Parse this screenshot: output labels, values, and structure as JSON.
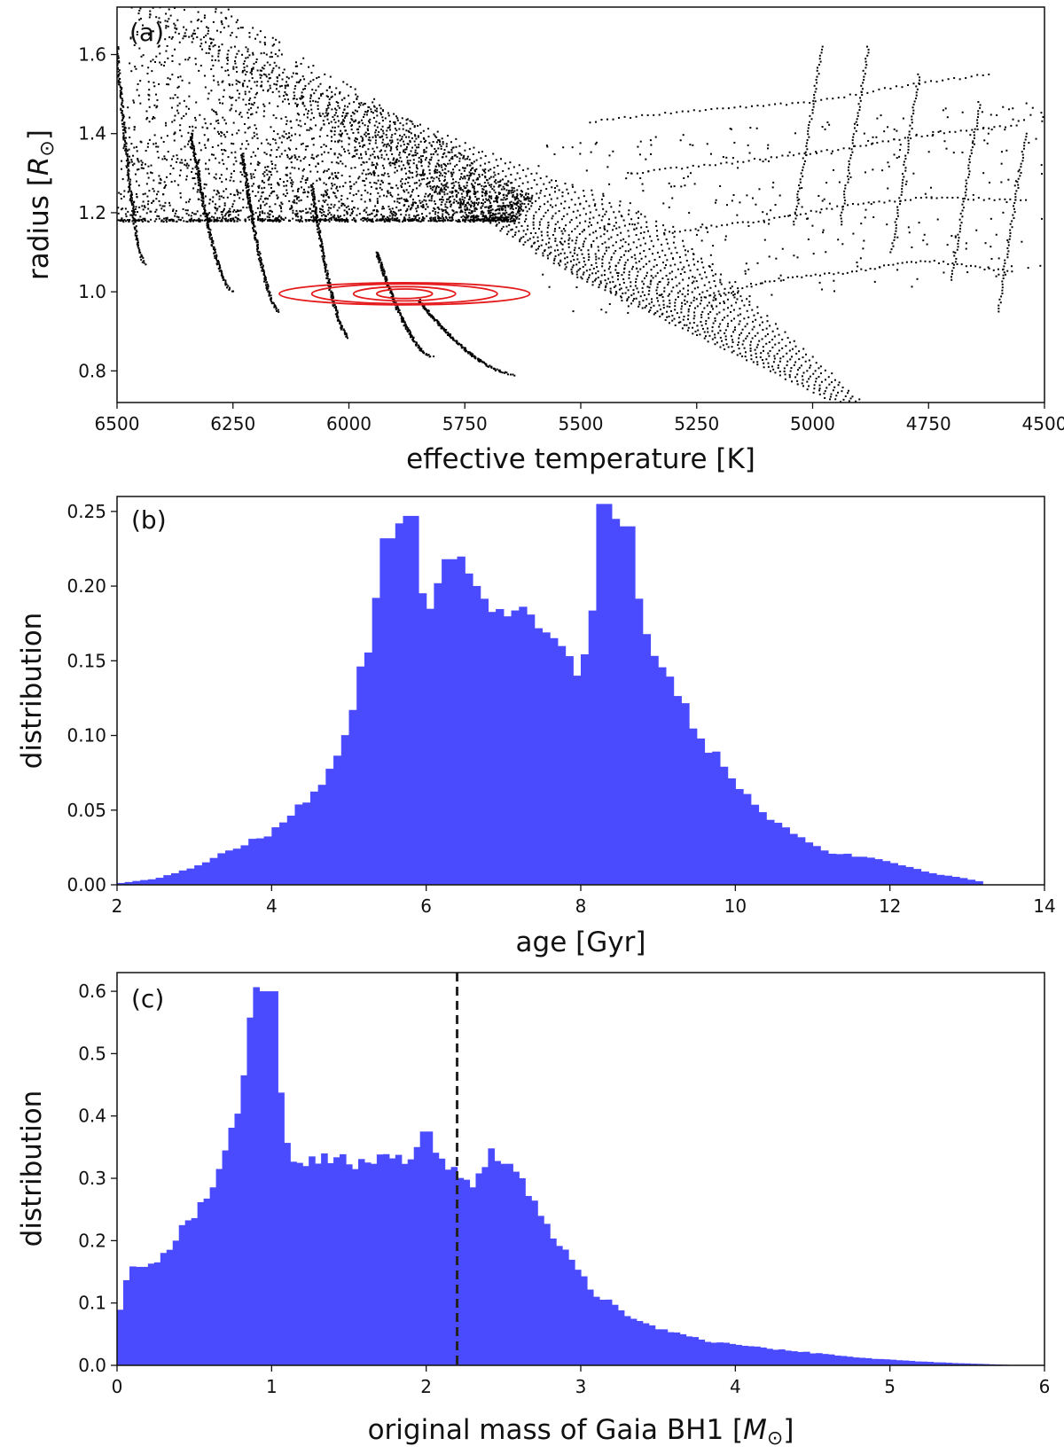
{
  "chart_data": [
    {
      "type": "scatter",
      "panel_label": "(a)",
      "xlabel": "effective temperature [K]",
      "ylabel": "radius [R⊙]",
      "xlim": [
        6500,
        4500
      ],
      "ylim": [
        0.72,
        1.72
      ],
      "x_inverted": true,
      "xticks": [
        6500,
        6250,
        6000,
        5750,
        5500,
        5250,
        5000,
        4750,
        4500
      ],
      "yticks": [
        0.8,
        1.0,
        1.2,
        1.4,
        1.6
      ],
      "point_color": "#000000",
      "zams_line": [
        [
          6500,
          1.18
        ],
        [
          6420,
          1.07
        ],
        [
          6250,
          1.0
        ],
        [
          6150,
          0.95
        ],
        [
          6000,
          0.885
        ],
        [
          5820,
          0.835
        ],
        [
          5640,
          0.79
        ]
      ],
      "tracks": [
        {
          "start": [
            6440,
            1.07
          ],
          "end_teff": 6500,
          "r_end": 1.62
        },
        {
          "start": [
            6250,
            1.0
          ],
          "end_teff": 6340,
          "r_end": 1.4
        },
        {
          "start": [
            6150,
            0.95
          ],
          "end_teff": 6230,
          "r_end": 1.35
        },
        {
          "start": [
            6000,
            0.885
          ],
          "end_teff": 6080,
          "r_end": 1.27
        },
        {
          "start": [
            5820,
            0.835
          ],
          "end_teff": 5940,
          "r_end": 1.1
        },
        {
          "start": [
            5640,
            0.79
          ],
          "end_teff": 5850,
          "r_end": 0.98
        }
      ],
      "red_giant_branch": {
        "curves": [
          [
            [
              5250,
              0.98
            ],
            [
              5080,
              1.03
            ],
            [
              4920,
              1.05
            ],
            [
              4760,
              1.08
            ],
            [
              4570,
              1.05
            ]
          ],
          [
            [
              5320,
              1.15
            ],
            [
              5110,
              1.18
            ],
            [
              4920,
              1.22
            ],
            [
              4740,
              1.24
            ],
            [
              4540,
              1.23
            ]
          ],
          [
            [
              5390,
              1.3
            ],
            [
              5150,
              1.33
            ],
            [
              4940,
              1.36
            ],
            [
              4740,
              1.4
            ],
            [
              4560,
              1.42
            ]
          ],
          [
            [
              5480,
              1.43
            ],
            [
              5240,
              1.46
            ],
            [
              5000,
              1.48
            ],
            [
              4810,
              1.52
            ],
            [
              4620,
              1.55
            ]
          ]
        ],
        "tips": [
          [
            4980,
            1.62
          ],
          [
            4880,
            1.62
          ],
          [
            4770,
            1.55
          ],
          [
            4640,
            1.48
          ],
          [
            4540,
            1.4
          ]
        ]
      },
      "contours": {
        "color": "#e41a1c",
        "center": [
          5880,
          0.995
        ],
        "ellipses": [
          {
            "half_width_K": 60,
            "half_height": 0.012
          },
          {
            "half_width_K": 110,
            "half_height": 0.018
          },
          {
            "half_width_K": 200,
            "half_height": 0.025
          },
          {
            "half_width_K": 270,
            "half_height": 0.028
          }
        ]
      }
    },
    {
      "type": "bar",
      "panel_label": "(b)",
      "xlabel": "age [Gyr]",
      "ylabel": "distribution",
      "xlim": [
        2,
        14
      ],
      "ylim": [
        0,
        0.26
      ],
      "xticks": [
        2,
        4,
        6,
        8,
        10,
        12,
        14
      ],
      "yticks": [
        0.0,
        0.05,
        0.1,
        0.15,
        0.2,
        0.25
      ],
      "bar_color": "#4a4aff",
      "bin_width": 0.1,
      "key_points": [
        [
          2.0,
          0.001
        ],
        [
          2.5,
          0.004
        ],
        [
          3.0,
          0.012
        ],
        [
          3.5,
          0.024
        ],
        [
          4.0,
          0.035
        ],
        [
          4.3,
          0.05
        ],
        [
          4.6,
          0.062
        ],
        [
          4.9,
          0.09
        ],
        [
          5.1,
          0.13
        ],
        [
          5.3,
          0.17
        ],
        [
          5.45,
          0.215
        ],
        [
          5.6,
          0.22
        ],
        [
          5.75,
          0.24
        ],
        [
          5.9,
          0.205
        ],
        [
          6.05,
          0.19
        ],
        [
          6.2,
          0.21
        ],
        [
          6.4,
          0.215
        ],
        [
          6.6,
          0.205
        ],
        [
          6.9,
          0.185
        ],
        [
          7.2,
          0.18
        ],
        [
          7.5,
          0.17
        ],
        [
          7.8,
          0.16
        ],
        [
          8.0,
          0.14
        ],
        [
          8.1,
          0.16
        ],
        [
          8.25,
          0.23
        ],
        [
          8.35,
          0.25
        ],
        [
          8.5,
          0.24
        ],
        [
          8.7,
          0.2
        ],
        [
          8.9,
          0.16
        ],
        [
          9.2,
          0.13
        ],
        [
          9.6,
          0.095
        ],
        [
          10.0,
          0.07
        ],
        [
          10.4,
          0.045
        ],
        [
          10.8,
          0.033
        ],
        [
          11.2,
          0.022
        ],
        [
          11.6,
          0.019
        ],
        [
          12.0,
          0.016
        ],
        [
          12.5,
          0.008
        ],
        [
          13.0,
          0.004
        ],
        [
          13.2,
          0.002
        ],
        [
          13.25,
          0.0
        ]
      ],
      "spikes": [
        [
          5.5,
          0.232
        ],
        [
          5.65,
          0.242
        ],
        [
          5.8,
          0.247
        ],
        [
          6.3,
          0.218
        ],
        [
          8.3,
          0.255
        ],
        [
          8.45,
          0.245
        ],
        [
          8.6,
          0.24
        ]
      ]
    },
    {
      "type": "bar",
      "panel_label": "(c)",
      "xlabel": "original mass of Gaia BH1 [M⊙]",
      "ylabel": "distribution",
      "xlim": [
        0,
        6
      ],
      "ylim": [
        0,
        0.63
      ],
      "xticks": [
        0,
        1,
        2,
        3,
        4,
        5,
        6
      ],
      "yticks": [
        0.0,
        0.1,
        0.2,
        0.3,
        0.4,
        0.5,
        0.6
      ],
      "bar_color": "#4a4aff",
      "bin_width": 0.04,
      "vline": {
        "x": 2.2,
        "style": "dashed",
        "color": "#222222"
      },
      "key_points": [
        [
          0.0,
          0.06
        ],
        [
          0.03,
          0.11
        ],
        [
          0.08,
          0.155
        ],
        [
          0.18,
          0.165
        ],
        [
          0.25,
          0.16
        ],
        [
          0.3,
          0.175
        ],
        [
          0.4,
          0.215
        ],
        [
          0.5,
          0.24
        ],
        [
          0.6,
          0.27
        ],
        [
          0.7,
          0.33
        ],
        [
          0.78,
          0.42
        ],
        [
          0.85,
          0.52
        ],
        [
          0.9,
          0.59
        ],
        [
          0.95,
          0.6
        ],
        [
          1.0,
          0.57
        ],
        [
          1.05,
          0.45
        ],
        [
          1.1,
          0.36
        ],
        [
          1.15,
          0.335
        ],
        [
          1.3,
          0.325
        ],
        [
          1.5,
          0.33
        ],
        [
          1.7,
          0.325
        ],
        [
          1.9,
          0.34
        ],
        [
          2.0,
          0.37
        ],
        [
          2.1,
          0.34
        ],
        [
          2.2,
          0.3
        ],
        [
          2.28,
          0.28
        ],
        [
          2.35,
          0.32
        ],
        [
          2.45,
          0.345
        ],
        [
          2.55,
          0.32
        ],
        [
          2.65,
          0.28
        ],
        [
          2.8,
          0.22
        ],
        [
          2.95,
          0.16
        ],
        [
          3.1,
          0.115
        ],
        [
          3.3,
          0.08
        ],
        [
          3.5,
          0.06
        ],
        [
          3.8,
          0.04
        ],
        [
          4.1,
          0.03
        ],
        [
          4.5,
          0.02
        ],
        [
          4.8,
          0.012
        ],
        [
          5.2,
          0.006
        ],
        [
          5.5,
          0.003
        ],
        [
          5.75,
          0.001
        ]
      ],
      "spikes": [
        [
          0.96,
          0.6
        ],
        [
          1.0,
          0.6
        ],
        [
          2.0,
          0.375
        ],
        [
          2.43,
          0.348
        ]
      ]
    }
  ]
}
